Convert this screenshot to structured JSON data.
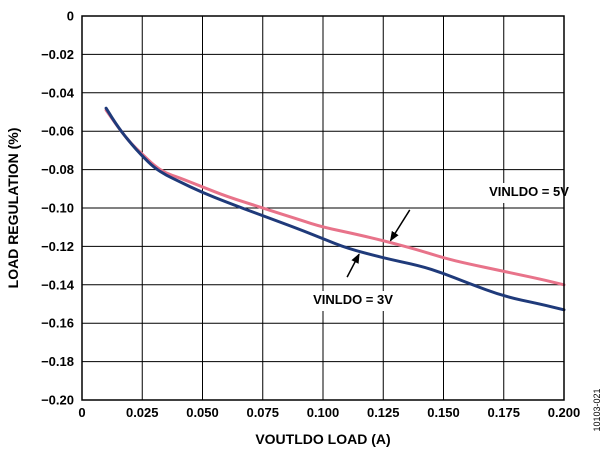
{
  "figure_id": "10103-021",
  "chart_data": {
    "type": "line",
    "title": "",
    "xlabel": "VOUTLDO LOAD (A)",
    "ylabel": "LOAD REGULATION (%)",
    "xlim": [
      0,
      0.2
    ],
    "ylim": [
      -0.2,
      0
    ],
    "grid": true,
    "legend": "none",
    "x_ticks": [
      {
        "value": 0,
        "label": "0"
      },
      {
        "value": 0.025,
        "label": "0.025"
      },
      {
        "value": 0.05,
        "label": "0.050"
      },
      {
        "value": 0.075,
        "label": "0.075"
      },
      {
        "value": 0.1,
        "label": "0.100"
      },
      {
        "value": 0.125,
        "label": "0.125"
      },
      {
        "value": 0.15,
        "label": "0.150"
      },
      {
        "value": 0.175,
        "label": "0.175"
      },
      {
        "value": 0.2,
        "label": "0.200"
      }
    ],
    "y_ticks": [
      {
        "value": 0,
        "label": "0"
      },
      {
        "value": -0.02,
        "label": "−0.02"
      },
      {
        "value": -0.04,
        "label": "−0.04"
      },
      {
        "value": -0.06,
        "label": "−0.06"
      },
      {
        "value": -0.08,
        "label": "−0.08"
      },
      {
        "value": -0.1,
        "label": "−0.10"
      },
      {
        "value": -0.12,
        "label": "−0.12"
      },
      {
        "value": -0.14,
        "label": "−0.14"
      },
      {
        "value": -0.16,
        "label": "−0.16"
      },
      {
        "value": -0.18,
        "label": "−0.18"
      },
      {
        "value": -0.2,
        "label": "−0.20"
      }
    ],
    "series": [
      {
        "name": "VINLDO = 3V",
        "color": "#1f3a7a",
        "points": [
          [
            0.01,
            -0.048
          ],
          [
            0.015,
            -0.058
          ],
          [
            0.02,
            -0.066
          ],
          [
            0.025,
            -0.073
          ],
          [
            0.03,
            -0.079
          ],
          [
            0.035,
            -0.083
          ],
          [
            0.04,
            -0.086
          ],
          [
            0.05,
            -0.092
          ],
          [
            0.06,
            -0.097
          ],
          [
            0.075,
            -0.104
          ],
          [
            0.09,
            -0.111
          ],
          [
            0.1,
            -0.116
          ],
          [
            0.11,
            -0.121
          ],
          [
            0.125,
            -0.126
          ],
          [
            0.14,
            -0.13
          ],
          [
            0.15,
            -0.134
          ],
          [
            0.16,
            -0.139
          ],
          [
            0.175,
            -0.146
          ],
          [
            0.19,
            -0.15
          ],
          [
            0.2,
            -0.153
          ]
        ]
      },
      {
        "name": "VINLDO = 5V",
        "color": "#e8738a",
        "points": [
          [
            0.01,
            -0.049
          ],
          [
            0.015,
            -0.058
          ],
          [
            0.02,
            -0.066
          ],
          [
            0.025,
            -0.072
          ],
          [
            0.03,
            -0.078
          ],
          [
            0.035,
            -0.082
          ],
          [
            0.04,
            -0.084
          ],
          [
            0.05,
            -0.089
          ],
          [
            0.06,
            -0.094
          ],
          [
            0.075,
            -0.1
          ],
          [
            0.09,
            -0.106
          ],
          [
            0.1,
            -0.11
          ],
          [
            0.115,
            -0.114
          ],
          [
            0.125,
            -0.117
          ],
          [
            0.14,
            -0.122
          ],
          [
            0.15,
            -0.126
          ],
          [
            0.16,
            -0.129
          ],
          [
            0.175,
            -0.133
          ],
          [
            0.19,
            -0.137
          ],
          [
            0.2,
            -0.14
          ]
        ]
      }
    ],
    "annotations": [
      {
        "text": "VINLDO = 5V",
        "arrow_from": [
          0.136,
          -0.101
        ],
        "arrow_to": [
          0.128,
          -0.117
        ]
      },
      {
        "text": "VINLDO = 3V",
        "arrow_from": [
          0.11,
          -0.136
        ],
        "arrow_to": [
          0.115,
          -0.124
        ]
      }
    ]
  }
}
